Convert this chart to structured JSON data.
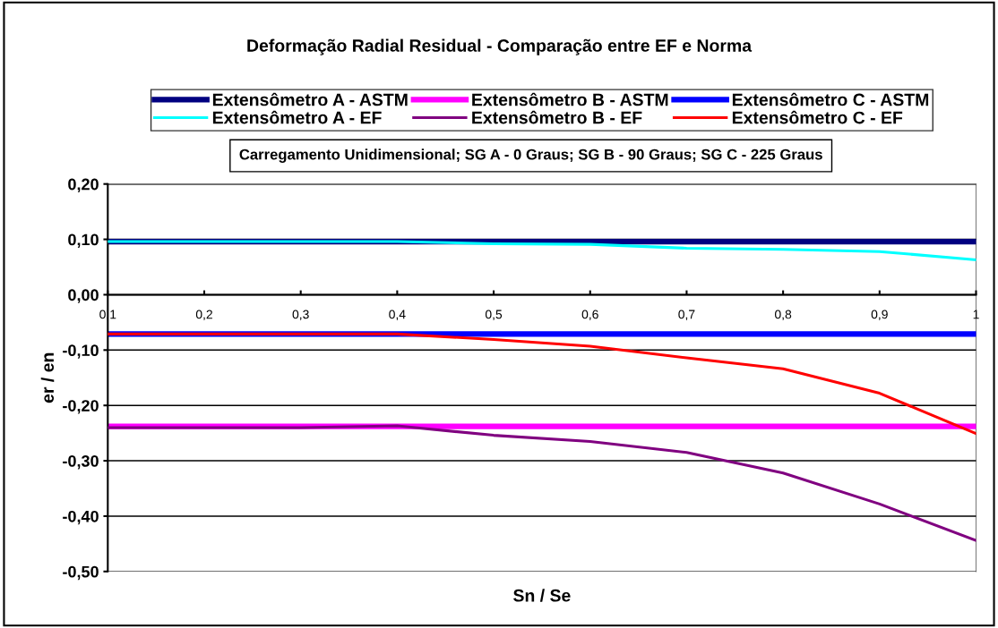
{
  "chart_data": {
    "type": "line",
    "title": "Deformação Radial Residual - Comparação entre EF e Norma",
    "xlabel": "Sn / Se",
    "ylabel": "er / en",
    "x": [
      0.1,
      0.2,
      0.3,
      0.4,
      0.5,
      0.6,
      0.7,
      0.8,
      0.9,
      1.0
    ],
    "series": [
      {
        "name": "Extensômetro A - ASTM",
        "color": "#000080",
        "values": [
          0.096,
          0.096,
          0.096,
          0.096,
          0.096,
          0.096,
          0.096,
          0.096,
          0.096,
          0.096
        ]
      },
      {
        "name": "Extensômetro B - ASTM",
        "color": "#ff00ff",
        "values": [
          -0.238,
          -0.238,
          -0.238,
          -0.238,
          -0.238,
          -0.238,
          -0.238,
          -0.238,
          -0.238,
          -0.238
        ]
      },
      {
        "name": "Extensômetro C - ASTM",
        "color": "#0000ff",
        "values": [
          -0.071,
          -0.071,
          -0.071,
          -0.071,
          -0.071,
          -0.071,
          -0.071,
          -0.071,
          -0.071,
          -0.071
        ]
      },
      {
        "name": "Extensômetro A - EF",
        "color": "#00ffff",
        "values": [
          0.096,
          0.096,
          0.096,
          0.096,
          0.092,
          0.091,
          0.084,
          0.082,
          0.078,
          0.063
        ]
      },
      {
        "name": "Extensômetro B - EF",
        "color": "#800080",
        "values": [
          -0.24,
          -0.24,
          -0.24,
          -0.237,
          -0.254,
          -0.265,
          -0.285,
          -0.322,
          -0.378,
          -0.444
        ]
      },
      {
        "name": "Extensômetro C - EF",
        "color": "#ff0000",
        "values": [
          -0.071,
          -0.071,
          -0.071,
          -0.071,
          -0.081,
          -0.093,
          -0.114,
          -0.134,
          -0.178,
          -0.251
        ]
      }
    ],
    "xlim": [
      0.1,
      1.0
    ],
    "ylim": [
      -0.5,
      0.2
    ],
    "xticks": [
      {
        "value": 0.1,
        "label": "0,1"
      },
      {
        "value": 0.2,
        "label": "0,2"
      },
      {
        "value": 0.3,
        "label": "0,3"
      },
      {
        "value": 0.4,
        "label": "0,4"
      },
      {
        "value": 0.5,
        "label": "0,5"
      },
      {
        "value": 0.6,
        "label": "0,6"
      },
      {
        "value": 0.7,
        "label": "0,7"
      },
      {
        "value": 0.8,
        "label": "0,8"
      },
      {
        "value": 0.9,
        "label": "0,9"
      },
      {
        "value": 1.0,
        "label": "1"
      }
    ],
    "yticks": [
      {
        "value": -0.5,
        "label": "-0,50"
      },
      {
        "value": -0.4,
        "label": "-0,40"
      },
      {
        "value": -0.3,
        "label": "-0,30"
      },
      {
        "value": -0.2,
        "label": "-0,20"
      },
      {
        "value": -0.1,
        "label": "-0,10"
      },
      {
        "value": 0.0,
        "label": "0,00"
      },
      {
        "value": 0.1,
        "label": "0,10"
      },
      {
        "value": 0.2,
        "label": "0,20"
      }
    ],
    "grid": "y",
    "legend": "top",
    "marker": "none",
    "line_style": "solid",
    "annotations": [
      "Carregamento Unidimensional; SG A - 0 Graus; SG B - 90 Graus; SG C - 225 Graus"
    ]
  }
}
